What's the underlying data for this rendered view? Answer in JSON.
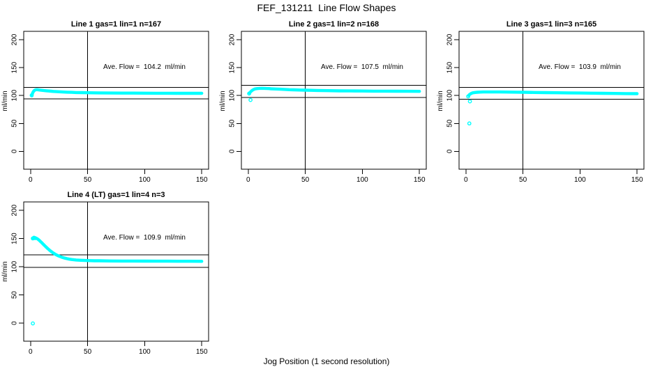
{
  "page": {
    "main_title": "FEF_131211  Line Flow Shapes",
    "x_axis_label": "Jog Position (1 second resolution)",
    "background_color": "#ffffff",
    "line_color": "#000000",
    "data_color": "#00ffff"
  },
  "chart_data": [
    {
      "type": "scatter",
      "title": "Line 1 gas=1 lin=1 n=167",
      "line": "Line 1",
      "gas": 1,
      "lin": 1,
      "n": 167,
      "ylabel": "ml/min",
      "ave_flow": 104.2,
      "ave_label": "Ave. Flow =  104.2  ml/min",
      "xlim": [
        -6,
        156
      ],
      "ylim": [
        -32,
        215
      ],
      "xticks": [
        0,
        50,
        100,
        150
      ],
      "yticks": [
        0,
        50,
        100,
        150,
        200
      ],
      "vline": 50,
      "hlines": [
        114.6,
        93.8
      ],
      "marker_color": "#00ffff",
      "curve": [
        [
          1.2,
          101
        ],
        [
          2,
          105.5
        ],
        [
          3,
          108.5
        ],
        [
          4,
          110
        ],
        [
          5,
          110.4
        ],
        [
          6,
          110.4
        ],
        [
          7,
          110.1
        ],
        [
          8,
          109.8
        ],
        [
          10,
          109.4
        ],
        [
          12,
          108.9
        ],
        [
          14,
          108.5
        ],
        [
          16,
          108.1
        ],
        [
          18,
          107.7
        ],
        [
          20,
          107.4
        ],
        [
          24,
          106.9
        ],
        [
          28,
          106.4
        ],
        [
          32,
          106
        ],
        [
          36,
          105.7
        ],
        [
          40,
          105.4
        ],
        [
          45,
          105.2
        ],
        [
          50,
          105
        ],
        [
          55,
          104.8
        ],
        [
          60,
          104.7
        ],
        [
          70,
          104.5
        ],
        [
          80,
          104.4
        ],
        [
          90,
          104.3
        ],
        [
          100,
          104.2
        ],
        [
          110,
          104.1
        ],
        [
          120,
          104.1
        ],
        [
          130,
          104
        ],
        [
          140,
          104
        ],
        [
          150,
          104
        ]
      ],
      "lead_markers": [
        [
          1,
          100.3
        ]
      ],
      "outliers": []
    },
    {
      "type": "scatter",
      "title": "Line 2 gas=1 lin=2 n=168",
      "line": "Line 2",
      "gas": 1,
      "lin": 2,
      "n": 168,
      "ylabel": "ml/min",
      "ave_flow": 107.5,
      "ave_label": "Ave. Flow =  107.5  ml/min",
      "xlim": [
        -6,
        156
      ],
      "ylim": [
        -32,
        215
      ],
      "xticks": [
        0,
        50,
        100,
        150
      ],
      "yticks": [
        0,
        50,
        100,
        150,
        200
      ],
      "vline": 50,
      "hlines": [
        118.3,
        96.8
      ],
      "marker_color": "#00ffff",
      "curve": [
        [
          1,
          104.5
        ],
        [
          2,
          106.5
        ],
        [
          3,
          108.5
        ],
        [
          4,
          110
        ],
        [
          5,
          111
        ],
        [
          6,
          111.8
        ],
        [
          8,
          112.5
        ],
        [
          10,
          112.8
        ],
        [
          12,
          112.9
        ],
        [
          14,
          112.8
        ],
        [
          16,
          112.6
        ],
        [
          18,
          112.4
        ],
        [
          20,
          112.1
        ],
        [
          24,
          111.7
        ],
        [
          28,
          111.3
        ],
        [
          32,
          110.9
        ],
        [
          36,
          110.5
        ],
        [
          40,
          110.2
        ],
        [
          45,
          109.9
        ],
        [
          50,
          109.6
        ],
        [
          55,
          109.3
        ],
        [
          60,
          109.1
        ],
        [
          70,
          108.7
        ],
        [
          80,
          108.4
        ],
        [
          90,
          108.2
        ],
        [
          100,
          108.1
        ],
        [
          110,
          107.9
        ],
        [
          120,
          107.8
        ],
        [
          130,
          107.7
        ],
        [
          140,
          107.6
        ],
        [
          150,
          107.5
        ]
      ],
      "lead_markers": [
        [
          0.8,
          103.5
        ]
      ],
      "outliers": [
        [
          2,
          92
        ]
      ]
    },
    {
      "type": "scatter",
      "title": "Line 3 gas=1 lin=3 n=165",
      "line": "Line 3",
      "gas": 1,
      "lin": 3,
      "n": 165,
      "ylabel": "ml/min",
      "ave_flow": 103.9,
      "ave_label": "Ave. Flow =  103.9  ml/min",
      "xlim": [
        -6,
        156
      ],
      "ylim": [
        -32,
        215
      ],
      "xticks": [
        0,
        50,
        100,
        150
      ],
      "yticks": [
        0,
        50,
        100,
        150,
        200
      ],
      "vline": 50,
      "hlines": [
        114.3,
        93.5
      ],
      "marker_color": "#00ffff",
      "curve": [
        [
          2.5,
          100
        ],
        [
          3,
          101.5
        ],
        [
          4,
          103
        ],
        [
          5,
          104.1
        ],
        [
          6,
          104.8
        ],
        [
          8,
          105.5
        ],
        [
          10,
          105.9
        ],
        [
          12,
          106.1
        ],
        [
          15,
          106.3
        ],
        [
          20,
          106.4
        ],
        [
          25,
          106.4
        ],
        [
          30,
          106.3
        ],
        [
          35,
          106.2
        ],
        [
          40,
          106.1
        ],
        [
          45,
          106
        ],
        [
          50,
          105.8
        ],
        [
          60,
          105.5
        ],
        [
          70,
          105.2
        ],
        [
          80,
          105
        ],
        [
          90,
          104.7
        ],
        [
          100,
          104.5
        ],
        [
          110,
          104.2
        ],
        [
          120,
          104
        ],
        [
          130,
          103.7
        ],
        [
          140,
          103.5
        ],
        [
          150,
          103.3
        ]
      ],
      "lead_markers": [
        [
          2,
          98.5
        ]
      ],
      "outliers": [
        [
          3.5,
          89.5
        ],
        [
          3,
          50
        ]
      ]
    },
    {
      "type": "scatter",
      "title": "Line 4 (LT) gas=1 lin=4 n=3",
      "line": "Line 4 (LT)",
      "gas": 1,
      "lin": 4,
      "n": 3,
      "ylabel": "ml/min",
      "ave_flow": 109.9,
      "ave_label": "Ave. Flow =  109.9  ml/min",
      "xlim": [
        -6,
        156
      ],
      "ylim": [
        -32,
        215
      ],
      "xticks": [
        0,
        50,
        100,
        150
      ],
      "yticks": [
        0,
        50,
        100,
        150,
        200
      ],
      "vline": 50,
      "hlines": [
        120.9,
        98.9
      ],
      "marker_color": "#00ffff",
      "curve": [
        [
          2,
          150.5
        ],
        [
          3,
          151.3
        ],
        [
          4,
          151.2
        ],
        [
          5,
          150.6
        ],
        [
          6,
          149.5
        ],
        [
          7,
          148
        ],
        [
          8,
          146.2
        ],
        [
          9,
          144.2
        ],
        [
          10,
          142.2
        ],
        [
          11,
          140.2
        ],
        [
          12,
          138.2
        ],
        [
          13,
          136.2
        ],
        [
          14,
          134.2
        ],
        [
          15,
          132.3
        ],
        [
          16,
          130.5
        ],
        [
          17,
          128.8
        ],
        [
          18,
          127.2
        ],
        [
          19,
          125.7
        ],
        [
          20,
          124.3
        ],
        [
          21,
          123
        ],
        [
          22,
          121.8
        ],
        [
          24,
          119.7
        ],
        [
          26,
          118
        ],
        [
          28,
          116.5
        ],
        [
          30,
          115.3
        ],
        [
          32,
          114.3
        ],
        [
          34,
          113.5
        ],
        [
          36,
          112.9
        ],
        [
          38,
          112.4
        ],
        [
          40,
          112
        ],
        [
          44,
          111.5
        ],
        [
          48,
          111.1
        ],
        [
          52,
          110.9
        ],
        [
          56,
          110.7
        ],
        [
          60,
          110.6
        ],
        [
          70,
          110.3
        ],
        [
          80,
          110.2
        ],
        [
          90,
          110.1
        ],
        [
          100,
          110
        ],
        [
          110,
          109.9
        ],
        [
          120,
          109.9
        ],
        [
          130,
          109.8
        ],
        [
          140,
          109.8
        ],
        [
          150,
          109.7
        ]
      ],
      "lead_markers": [
        [
          2,
          150.3
        ],
        [
          3,
          151.5
        ],
        [
          4,
          150.8
        ]
      ],
      "outliers": [
        [
          2,
          -0.5
        ]
      ]
    }
  ]
}
